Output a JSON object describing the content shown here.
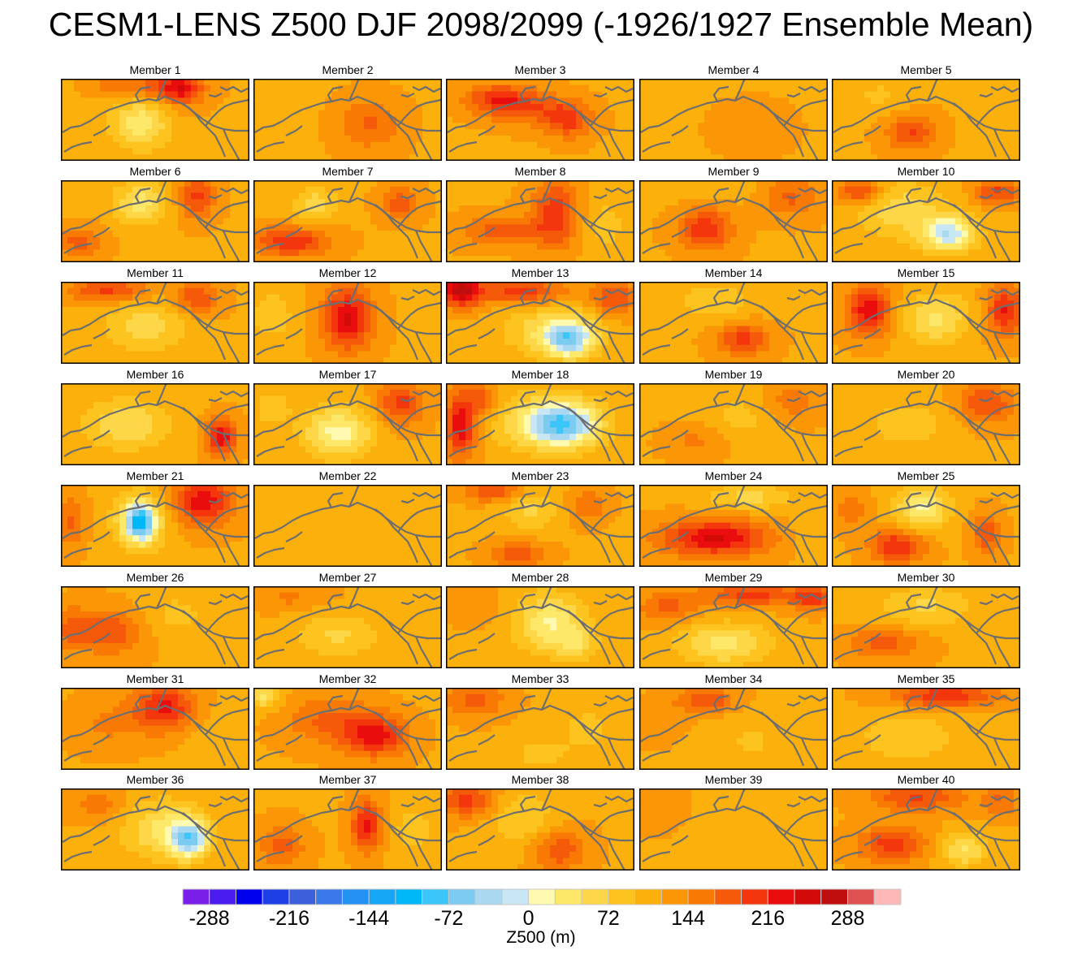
{
  "title": "CESM1-LENS Z500 DJF 2098/2099 (-1926/1927 Ensemble Mean)",
  "colors": {
    "land_outline": "#6e6e6e",
    "panel_border": "#000000"
  },
  "chart_data": {
    "type": "heatmap",
    "title": "CESM1-LENS Z500 DJF 2098/2099 (-1926/1927 Ensemble Mean)",
    "variable": "Z500",
    "units": "m",
    "colorbar_label": "Z500 (m)",
    "contour_interval": 24,
    "range": [
      -312,
      312
    ],
    "colorbar_tick_values": [
      -288,
      -216,
      -144,
      -72,
      0,
      72,
      144,
      216,
      288
    ],
    "colorbar_tick_labels": [
      "-288",
      "-216",
      "-144",
      "-72",
      "0",
      "72",
      "144",
      "216",
      "288"
    ],
    "colorbar_colors": [
      "#7a1fe8",
      "#4b1cf0",
      "#0000ee",
      "#1e3fe6",
      "#3c5fdc",
      "#3a78ec",
      "#2490f2",
      "#16a6f6",
      "#00b8f8",
      "#3ac6f8",
      "#7ccbf0",
      "#a9d8f0",
      "#c8e6f4",
      "#fffab0",
      "#fde869",
      "#fdd747",
      "#fdc41f",
      "#fcb00c",
      "#fb9606",
      "#f87a04",
      "#f5590a",
      "#f3360c",
      "#ea0d0d",
      "#d30a0a",
      "#c00d0d",
      "#e05252",
      "#fdb7b7"
    ],
    "panel_grid": {
      "rows": 8,
      "columns": 5
    },
    "base_value": 118,
    "members": [
      {
        "label": "Member 1",
        "blobs": [
          [
            0.42,
            0.55,
            0.15,
            0.3,
            -85
          ],
          [
            0.55,
            0.1,
            0.18,
            0.15,
            75
          ],
          [
            0.65,
            0.15,
            0.1,
            0.2,
            70
          ],
          [
            0.28,
            0.08,
            0.12,
            0.12,
            45
          ]
        ]
      },
      {
        "label": "Member 2",
        "blobs": [
          [
            0.62,
            0.55,
            0.16,
            0.3,
            55
          ],
          [
            0.12,
            0.3,
            0.15,
            0.35,
            -20
          ]
        ]
      },
      {
        "label": "Member 3",
        "blobs": [
          [
            0.28,
            0.25,
            0.18,
            0.18,
            85
          ],
          [
            0.65,
            0.5,
            0.12,
            0.22,
            80
          ],
          [
            0.45,
            0.38,
            0.2,
            0.2,
            55
          ]
        ]
      },
      {
        "label": "Member 4",
        "blobs": [
          [
            0.6,
            0.6,
            0.2,
            0.3,
            15
          ],
          [
            0.1,
            0.2,
            0.15,
            0.3,
            -15
          ]
        ]
      },
      {
        "label": "Member 5",
        "blobs": [
          [
            0.42,
            0.65,
            0.13,
            0.22,
            75
          ],
          [
            0.25,
            0.2,
            0.18,
            0.25,
            -25
          ]
        ]
      },
      {
        "label": "Member 6",
        "blobs": [
          [
            0.42,
            0.28,
            0.14,
            0.25,
            -80
          ],
          [
            0.72,
            0.2,
            0.1,
            0.25,
            80
          ],
          [
            0.1,
            0.75,
            0.12,
            0.18,
            60
          ]
        ]
      },
      {
        "label": "Member 7",
        "blobs": [
          [
            0.33,
            0.3,
            0.12,
            0.22,
            -60
          ],
          [
            0.2,
            0.75,
            0.2,
            0.18,
            95
          ],
          [
            0.78,
            0.28,
            0.1,
            0.2,
            65
          ]
        ]
      },
      {
        "label": "Member 8",
        "blobs": [
          [
            0.58,
            0.4,
            0.12,
            0.4,
            90
          ],
          [
            0.3,
            0.62,
            0.22,
            0.18,
            65
          ],
          [
            0.85,
            0.55,
            0.12,
            0.4,
            -30
          ]
        ]
      },
      {
        "label": "Member 9",
        "blobs": [
          [
            0.35,
            0.6,
            0.14,
            0.25,
            95
          ],
          [
            0.8,
            0.2,
            0.15,
            0.25,
            55
          ],
          [
            0.35,
            0.1,
            0.25,
            0.15,
            -20
          ]
        ]
      },
      {
        "label": "Member 10",
        "blobs": [
          [
            0.62,
            0.65,
            0.14,
            0.22,
            -135
          ],
          [
            0.35,
            0.35,
            0.25,
            0.35,
            -60
          ],
          [
            0.15,
            0.15,
            0.12,
            0.15,
            90
          ],
          [
            0.88,
            0.15,
            0.12,
            0.15,
            80
          ]
        ]
      },
      {
        "label": "Member 11",
        "blobs": [
          [
            0.45,
            0.55,
            0.22,
            0.3,
            -60
          ],
          [
            0.25,
            0.1,
            0.2,
            0.15,
            80
          ],
          [
            0.72,
            0.2,
            0.12,
            0.2,
            75
          ]
        ]
      },
      {
        "label": "Member 12",
        "blobs": [
          [
            0.5,
            0.45,
            0.13,
            0.38,
            125
          ],
          [
            0.1,
            0.4,
            0.12,
            0.3,
            -40
          ]
        ]
      },
      {
        "label": "Member 13",
        "blobs": [
          [
            0.65,
            0.7,
            0.13,
            0.22,
            -150
          ],
          [
            0.55,
            0.6,
            0.25,
            0.3,
            -60
          ],
          [
            0.08,
            0.1,
            0.1,
            0.2,
            150
          ],
          [
            0.4,
            0.12,
            0.25,
            0.15,
            85
          ],
          [
            0.9,
            0.2,
            0.12,
            0.2,
            75
          ]
        ]
      },
      {
        "label": "Member 14",
        "blobs": [
          [
            0.55,
            0.7,
            0.14,
            0.2,
            85
          ],
          [
            0.4,
            0.25,
            0.2,
            0.25,
            -40
          ]
        ]
      },
      {
        "label": "Member 15",
        "blobs": [
          [
            0.2,
            0.35,
            0.12,
            0.3,
            115
          ],
          [
            0.55,
            0.45,
            0.18,
            0.3,
            -75
          ],
          [
            0.92,
            0.35,
            0.1,
            0.3,
            100
          ]
        ]
      },
      {
        "label": "Member 16",
        "blobs": [
          [
            0.35,
            0.5,
            0.22,
            0.3,
            -70
          ],
          [
            0.85,
            0.65,
            0.08,
            0.22,
            115
          ]
        ]
      },
      {
        "label": "Member 17",
        "blobs": [
          [
            0.45,
            0.6,
            0.18,
            0.3,
            -105
          ],
          [
            0.78,
            0.25,
            0.12,
            0.25,
            85
          ],
          [
            0.1,
            0.3,
            0.1,
            0.2,
            -40
          ]
        ]
      },
      {
        "label": "Member 18",
        "blobs": [
          [
            0.62,
            0.5,
            0.18,
            0.25,
            -145
          ],
          [
            0.52,
            0.48,
            0.28,
            0.35,
            -70
          ],
          [
            0.08,
            0.5,
            0.08,
            0.4,
            125
          ],
          [
            0.2,
            0.2,
            0.08,
            0.2,
            60
          ]
        ]
      },
      {
        "label": "Member 19",
        "blobs": [
          [
            0.3,
            0.7,
            0.15,
            0.22,
            35
          ],
          [
            0.8,
            0.25,
            0.15,
            0.25,
            45
          ],
          [
            0.55,
            0.4,
            0.25,
            0.3,
            -30
          ]
        ]
      },
      {
        "label": "Member 20",
        "blobs": [
          [
            0.82,
            0.25,
            0.15,
            0.25,
            75
          ],
          [
            0.4,
            0.5,
            0.25,
            0.3,
            -35
          ]
        ]
      },
      {
        "label": "Member 21",
        "blobs": [
          [
            0.42,
            0.45,
            0.08,
            0.22,
            -185
          ],
          [
            0.42,
            0.45,
            0.16,
            0.38,
            -60
          ],
          [
            0.75,
            0.2,
            0.16,
            0.3,
            115
          ],
          [
            0.05,
            0.45,
            0.08,
            0.3,
            55
          ]
        ]
      },
      {
        "label": "Member 22",
        "blobs": [
          [
            0.4,
            0.35,
            0.25,
            0.35,
            -20
          ],
          [
            0.8,
            0.6,
            0.15,
            0.3,
            -15
          ]
        ]
      },
      {
        "label": "Member 23",
        "blobs": [
          [
            0.45,
            0.3,
            0.15,
            0.25,
            -50
          ],
          [
            0.38,
            0.85,
            0.14,
            0.15,
            70
          ],
          [
            0.25,
            0.08,
            0.15,
            0.12,
            80
          ],
          [
            0.75,
            0.25,
            0.1,
            0.2,
            50
          ]
        ]
      },
      {
        "label": "Member 24",
        "blobs": [
          [
            0.4,
            0.65,
            0.28,
            0.22,
            125
          ],
          [
            0.58,
            0.15,
            0.22,
            0.15,
            -55
          ],
          [
            0.9,
            0.5,
            0.1,
            0.3,
            -20
          ]
        ]
      },
      {
        "label": "Member 25",
        "blobs": [
          [
            0.48,
            0.28,
            0.14,
            0.25,
            -100
          ],
          [
            0.35,
            0.75,
            0.14,
            0.2,
            100
          ],
          [
            0.82,
            0.6,
            0.08,
            0.25,
            70
          ],
          [
            0.1,
            0.3,
            0.1,
            0.2,
            40
          ]
        ]
      },
      {
        "label": "Member 26",
        "blobs": [
          [
            0.25,
            0.55,
            0.2,
            0.28,
            70
          ],
          [
            0.05,
            0.5,
            0.08,
            0.25,
            45
          ],
          [
            0.6,
            0.35,
            0.2,
            0.3,
            -30
          ]
        ]
      },
      {
        "label": "Member 27",
        "blobs": [
          [
            0.45,
            0.6,
            0.22,
            0.28,
            -50
          ],
          [
            0.2,
            0.15,
            0.2,
            0.15,
            30
          ]
        ]
      },
      {
        "label": "Member 28",
        "blobs": [
          [
            0.55,
            0.45,
            0.18,
            0.35,
            -95
          ],
          [
            0.7,
            0.7,
            0.1,
            0.2,
            -55
          ],
          [
            0.15,
            0.25,
            0.15,
            0.2,
            20
          ]
        ]
      },
      {
        "label": "Member 29",
        "blobs": [
          [
            0.45,
            0.7,
            0.24,
            0.25,
            -80
          ],
          [
            0.6,
            0.1,
            0.25,
            0.15,
            85
          ],
          [
            0.15,
            0.25,
            0.15,
            0.2,
            60
          ],
          [
            0.92,
            0.15,
            0.1,
            0.15,
            80
          ]
        ]
      },
      {
        "label": "Member 30",
        "blobs": [
          [
            0.28,
            0.7,
            0.2,
            0.2,
            60
          ],
          [
            0.5,
            0.25,
            0.25,
            0.25,
            -50
          ]
        ]
      },
      {
        "label": "Member 31",
        "blobs": [
          [
            0.55,
            0.25,
            0.16,
            0.28,
            105
          ],
          [
            0.25,
            0.45,
            0.18,
            0.3,
            30
          ],
          [
            0.8,
            0.6,
            0.15,
            0.3,
            -20
          ]
        ]
      },
      {
        "label": "Member 32",
        "blobs": [
          [
            0.65,
            0.58,
            0.16,
            0.25,
            110
          ],
          [
            0.4,
            0.4,
            0.22,
            0.3,
            55
          ],
          [
            0.05,
            0.1,
            0.08,
            0.15,
            -80
          ]
        ]
      },
      {
        "label": "Member 33",
        "blobs": [
          [
            0.15,
            0.15,
            0.16,
            0.2,
            60
          ],
          [
            0.75,
            0.5,
            0.16,
            0.3,
            -30
          ],
          [
            0.5,
            0.8,
            0.15,
            0.18,
            -35
          ]
        ]
      },
      {
        "label": "Member 34",
        "blobs": [
          [
            0.35,
            0.15,
            0.15,
            0.15,
            75
          ],
          [
            0.6,
            0.65,
            0.2,
            0.3,
            -25
          ],
          [
            0.1,
            0.4,
            0.12,
            0.25,
            20
          ]
        ]
      },
      {
        "label": "Member 35",
        "blobs": [
          [
            0.6,
            0.1,
            0.28,
            0.15,
            95
          ],
          [
            0.4,
            0.6,
            0.25,
            0.3,
            -45
          ],
          [
            0.85,
            0.7,
            0.12,
            0.25,
            -20
          ]
        ]
      },
      {
        "label": "Member 36",
        "blobs": [
          [
            0.68,
            0.62,
            0.1,
            0.22,
            -145
          ],
          [
            0.55,
            0.5,
            0.22,
            0.35,
            -75
          ],
          [
            0.2,
            0.2,
            0.15,
            0.2,
            40
          ]
        ]
      },
      {
        "label": "Member 37",
        "blobs": [
          [
            0.6,
            0.45,
            0.08,
            0.3,
            110
          ],
          [
            0.15,
            0.7,
            0.12,
            0.25,
            60
          ],
          [
            0.85,
            0.5,
            0.12,
            0.3,
            -35
          ]
        ]
      },
      {
        "label": "Member 38",
        "blobs": [
          [
            0.12,
            0.15,
            0.15,
            0.2,
            85
          ],
          [
            0.4,
            0.35,
            0.18,
            0.35,
            -45
          ],
          [
            0.6,
            0.75,
            0.14,
            0.25,
            70
          ]
        ]
      },
      {
        "label": "Member 39",
        "blobs": [
          [
            0.5,
            0.5,
            0.3,
            0.35,
            -20
          ],
          [
            0.15,
            0.3,
            0.15,
            0.3,
            20
          ]
        ]
      },
      {
        "label": "Member 40",
        "blobs": [
          [
            0.7,
            0.75,
            0.12,
            0.2,
            -75
          ],
          [
            0.32,
            0.68,
            0.18,
            0.22,
            85
          ],
          [
            0.45,
            0.1,
            0.25,
            0.18,
            75
          ],
          [
            0.9,
            0.15,
            0.1,
            0.2,
            50
          ]
        ]
      }
    ]
  }
}
